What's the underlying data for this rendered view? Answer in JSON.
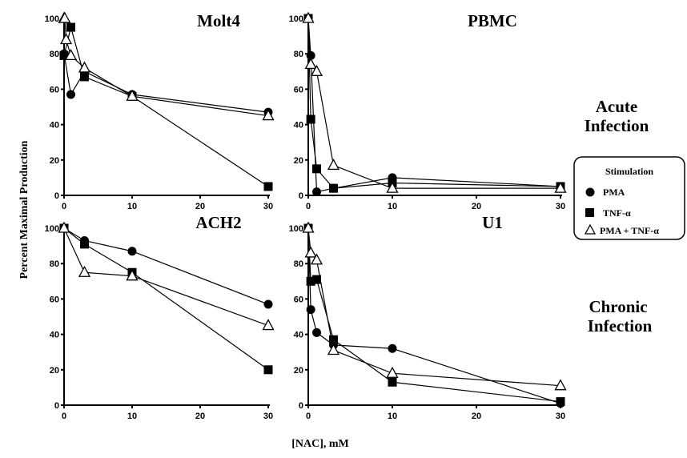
{
  "figure": {
    "ylabel": "Percent Maximal Production",
    "xlabel": "[NAC], mM",
    "row_labels": [
      [
        "Acute",
        "Infection"
      ],
      [
        "Chronic",
        "Infection"
      ]
    ]
  },
  "legend": {
    "title": "Stimulation",
    "placement": "right",
    "entries": [
      {
        "label": "PMA",
        "marker": "circle-filled"
      },
      {
        "label": "TNF-α",
        "marker": "square-filled"
      },
      {
        "label": "PMA + TNF-α",
        "marker": "triangle-open"
      }
    ]
  },
  "chart_data": [
    {
      "type": "line",
      "title": "Molt4",
      "xlim": [
        0,
        30
      ],
      "ylim": [
        0,
        100
      ],
      "xticks": [
        0,
        10,
        20,
        30
      ],
      "yticks": [
        0,
        20,
        40,
        60,
        80,
        100
      ],
      "series": [
        {
          "name": "PMA",
          "marker": "circle",
          "x": [
            0,
            1,
            3,
            10,
            30
          ],
          "y": [
            80,
            57,
            70,
            57,
            47
          ]
        },
        {
          "name": "TNF-α",
          "marker": "square",
          "x": [
            0,
            1,
            3,
            10,
            30
          ],
          "y": [
            79,
            95,
            67,
            56,
            5
          ]
        },
        {
          "name": "PMA + TNF-α",
          "marker": "triangle",
          "x": [
            0,
            0.1,
            0.3,
            1,
            3,
            10,
            30
          ],
          "y": [
            100,
            100,
            88,
            79,
            72,
            56,
            45
          ]
        }
      ]
    },
    {
      "type": "line",
      "title": "PBMC",
      "xlim": [
        0,
        30
      ],
      "ylim": [
        0,
        100
      ],
      "xticks": [
        0,
        10,
        20,
        30
      ],
      "yticks": [
        0,
        20,
        40,
        60,
        80,
        100
      ],
      "series": [
        {
          "name": "PMA",
          "marker": "circle",
          "x": [
            0,
            0.3,
            1,
            3,
            10,
            30
          ],
          "y": [
            100,
            79,
            2,
            4,
            10,
            5
          ]
        },
        {
          "name": "TNF-α",
          "marker": "square",
          "x": [
            0,
            0.3,
            1,
            3,
            10,
            30
          ],
          "y": [
            100,
            43,
            15,
            4,
            7,
            5
          ]
        },
        {
          "name": "PMA + TNF-α",
          "marker": "triangle",
          "x": [
            0,
            0.3,
            1,
            3,
            10,
            30
          ],
          "y": [
            100,
            74,
            70,
            17,
            4,
            4
          ]
        }
      ]
    },
    {
      "type": "line",
      "title": "ACH2",
      "xlim": [
        0,
        30
      ],
      "ylim": [
        0,
        100
      ],
      "xticks": [
        0,
        10,
        20,
        30
      ],
      "yticks": [
        0,
        20,
        40,
        60,
        80,
        100
      ],
      "series": [
        {
          "name": "PMA",
          "marker": "circle",
          "x": [
            0,
            3,
            10,
            30
          ],
          "y": [
            100,
            93,
            87,
            57
          ]
        },
        {
          "name": "TNF-α",
          "marker": "square",
          "x": [
            0,
            3,
            10,
            30
          ],
          "y": [
            100,
            91,
            75,
            20
          ]
        },
        {
          "name": "PMA + TNF-α",
          "marker": "triangle",
          "x": [
            0,
            3,
            10,
            30
          ],
          "y": [
            100,
            75,
            73,
            45
          ]
        }
      ]
    },
    {
      "type": "line",
      "title": "U1",
      "xlim": [
        0,
        30
      ],
      "ylim": [
        0,
        100
      ],
      "xticks": [
        0,
        10,
        20,
        30
      ],
      "yticks": [
        0,
        20,
        40,
        60,
        80,
        100
      ],
      "series": [
        {
          "name": "PMA",
          "marker": "circle",
          "x": [
            0,
            0.3,
            1,
            3,
            10,
            30
          ],
          "y": [
            100,
            54,
            41,
            34,
            32,
            1
          ]
        },
        {
          "name": "TNF-α",
          "marker": "square",
          "x": [
            0,
            0.3,
            1,
            3,
            10,
            30
          ],
          "y": [
            100,
            70,
            71,
            37,
            13,
            2
          ]
        },
        {
          "name": "PMA + TNF-α",
          "marker": "triangle",
          "x": [
            0,
            0.3,
            1,
            3,
            10,
            30
          ],
          "y": [
            100,
            86,
            82,
            31,
            18,
            11
          ]
        }
      ]
    }
  ]
}
